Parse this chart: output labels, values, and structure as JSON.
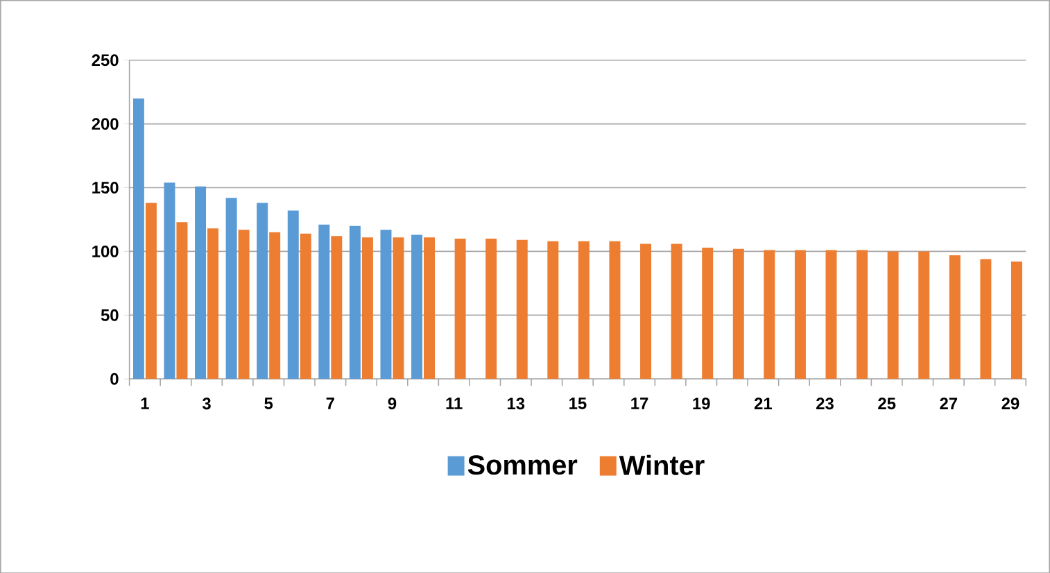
{
  "chart_data": {
    "type": "bar",
    "categories": [
      "1",
      null,
      "3",
      null,
      "5",
      null,
      "7",
      null,
      "9",
      null,
      "11",
      null,
      "13",
      null,
      "15",
      null,
      "17",
      null,
      "19",
      null,
      "21",
      null,
      "23",
      null,
      "25",
      null,
      "27",
      null,
      "29"
    ],
    "series": [
      {
        "name": "Sommer",
        "color": "#5b9bd5",
        "values": [
          220,
          154,
          151,
          142,
          138,
          132,
          121,
          120,
          117,
          113,
          null,
          null,
          null,
          null,
          null,
          null,
          null,
          null,
          null,
          null,
          null,
          null,
          null,
          null,
          null,
          null,
          null,
          null,
          null
        ]
      },
      {
        "name": "Winter",
        "color": "#ed7d31",
        "values": [
          138,
          123,
          118,
          117,
          115,
          114,
          112,
          111,
          111,
          111,
          110,
          110,
          109,
          108,
          108,
          108,
          106,
          106,
          103,
          102,
          101,
          101,
          101,
          101,
          100,
          100,
          97,
          94,
          92
        ]
      }
    ],
    "ylim": [
      0,
      250
    ],
    "yticks": [
      0,
      50,
      100,
      150,
      200,
      250
    ],
    "grid": "y",
    "legend": "bottom"
  }
}
